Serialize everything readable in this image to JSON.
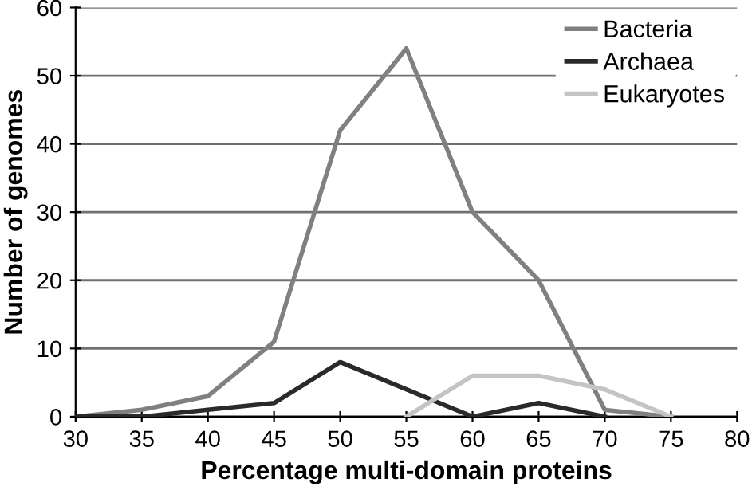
{
  "chart_data": {
    "type": "line",
    "xlabel": "Percentage multi-domain proteins",
    "ylabel": "Number of genomes",
    "xlim": [
      30,
      80
    ],
    "xticks": [
      30,
      35,
      40,
      45,
      50,
      55,
      60,
      65,
      70,
      75,
      80
    ],
    "ylim": [
      0,
      60
    ],
    "yticks": [
      0,
      10,
      20,
      30,
      40,
      50,
      60
    ],
    "grid": "y",
    "legend": "top right",
    "marker": "none",
    "line_style": "solid",
    "series": [
      {
        "name": "Bacteria",
        "color": "#808080",
        "x": [
          30,
          35,
          40,
          45,
          50,
          55,
          60,
          65,
          70,
          75
        ],
        "values": [
          0,
          1,
          3,
          11,
          42,
          54,
          30,
          20,
          1,
          0
        ]
      },
      {
        "name": "Archaea",
        "color": "#2a2a2a",
        "x": [
          30,
          35,
          40,
          45,
          50,
          55,
          60,
          65,
          70
        ],
        "values": [
          0,
          0,
          1,
          2,
          8,
          4,
          0,
          2,
          0
        ]
      },
      {
        "name": "Eukaryotes",
        "color": "#c4c4c4",
        "x": [
          55,
          60,
          65,
          70,
          75
        ],
        "values": [
          0,
          6,
          6,
          4,
          0
        ]
      }
    ]
  }
}
